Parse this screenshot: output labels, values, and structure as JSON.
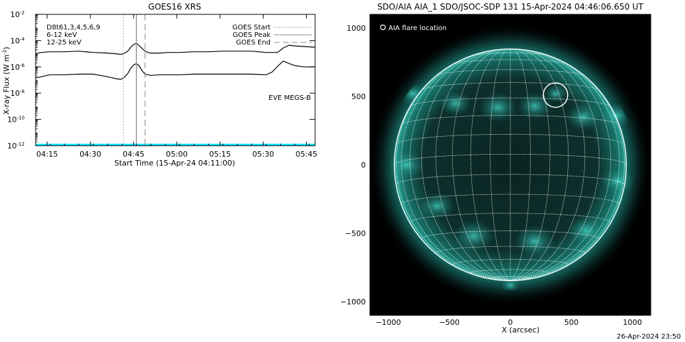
{
  "footer_timestamp": "26-Apr-2024 23:50",
  "chart_data": [
    {
      "type": "line",
      "title": "GOES16 XRS",
      "xlabel": "Start Time (15-Apr-24 04:11:00)",
      "ylabel_main": "X-ray Flux (W m",
      "ylabel_sup": "-2",
      "ylabel_close": ")",
      "x_unit": "minutes after 04:11:00",
      "xlim": [
        0,
        97
      ],
      "ylim_log10": [
        -12,
        -2
      ],
      "y_scale": "log",
      "x_ticks": [
        {
          "x": 4,
          "label": "04:15"
        },
        {
          "x": 19,
          "label": "04:30"
        },
        {
          "x": 34,
          "label": "04:45"
        },
        {
          "x": 49,
          "label": "05:00"
        },
        {
          "x": 64,
          "label": "05:15"
        },
        {
          "x": 79,
          "label": "05:30"
        },
        {
          "x": 94,
          "label": "05:45"
        }
      ],
      "y_ticks": [
        {
          "exp": -12,
          "base": "10",
          "sup": "-12"
        },
        {
          "exp": -10,
          "base": "10",
          "sup": "-10"
        },
        {
          "exp": -8,
          "base": "10",
          "sup": "-8"
        },
        {
          "exp": -6,
          "base": "10",
          "sup": "-6"
        },
        {
          "exp": -4,
          "base": "10",
          "sup": "-4"
        },
        {
          "exp": -2,
          "base": "10",
          "sup": "-2"
        }
      ],
      "top_left_labels": [
        {
          "text": "D8t61,3,4,5,6,9",
          "color": "#000000"
        },
        {
          "text": "6-12 keV",
          "color": "#ff00ff"
        },
        {
          "text": "12-25 keV",
          "color": "#00cc00"
        }
      ],
      "legend": [
        {
          "label": "GOES Start",
          "style": "dotted"
        },
        {
          "label": "GOES Peak",
          "style": "solid"
        },
        {
          "label": "GOES End",
          "style": "dashed"
        }
      ],
      "event_lines": {
        "start": 30.5,
        "peak": 35,
        "end": 38
      },
      "annotation": {
        "text": "EVE MEGS-B",
        "color": "#00e5ff"
      },
      "baseline": {
        "log10": -12,
        "color": "#00e5ff"
      },
      "series": [
        {
          "color": "#000000",
          "x": [
            0,
            2,
            5,
            10,
            15,
            20,
            25,
            28,
            29.5,
            30.5,
            32,
            33,
            34,
            35,
            36,
            37,
            38,
            39,
            40,
            43,
            46,
            50,
            55,
            60,
            65,
            70,
            75,
            80,
            82,
            84,
            86,
            88,
            90,
            93,
            97
          ],
          "log10": [
            -5.0,
            -4.9,
            -4.85,
            -4.85,
            -4.8,
            -4.9,
            -4.95,
            -5.0,
            -5.05,
            -5.0,
            -4.8,
            -4.5,
            -4.3,
            -4.2,
            -4.4,
            -4.6,
            -4.8,
            -4.9,
            -4.95,
            -4.95,
            -4.9,
            -4.9,
            -4.85,
            -4.85,
            -4.8,
            -4.8,
            -4.8,
            -4.9,
            -4.9,
            -4.9,
            -4.55,
            -4.35,
            -4.4,
            -4.45,
            -4.5
          ]
        },
        {
          "color": "#000000",
          "x": [
            0,
            2,
            5,
            10,
            15,
            20,
            25,
            28,
            29.5,
            30.5,
            32,
            33,
            34,
            35,
            36,
            37,
            38,
            39,
            40,
            43,
            46,
            50,
            55,
            60,
            65,
            70,
            75,
            80,
            82,
            84,
            86,
            88,
            90,
            93,
            97
          ],
          "log10": [
            -6.85,
            -6.75,
            -6.6,
            -6.6,
            -6.55,
            -6.55,
            -6.75,
            -6.9,
            -6.95,
            -6.85,
            -6.5,
            -6.1,
            -5.85,
            -5.75,
            -5.95,
            -6.3,
            -6.55,
            -6.6,
            -6.65,
            -6.6,
            -6.6,
            -6.6,
            -6.55,
            -6.55,
            -6.55,
            -6.55,
            -6.55,
            -6.6,
            -6.4,
            -5.95,
            -5.55,
            -5.75,
            -5.9,
            -6.0,
            -6.0
          ]
        }
      ]
    },
    {
      "type": "image",
      "title": "SDO/AIA AIA_1 SDO/JSOC-SDP 131 15-Apr-2024 04:46:06.650 UT",
      "xlabel": "X (arcsec)",
      "xlim": [
        -1150,
        1150
      ],
      "ylim": [
        -1100,
        1100
      ],
      "x_ticks": [
        -1000,
        -500,
        0,
        500,
        1000
      ],
      "y_ticks": [
        -1000,
        -500,
        0,
        500,
        1000
      ],
      "x_tick_labels": [
        "−1000",
        "−500",
        "0",
        "500",
        "1000"
      ],
      "y_tick_labels": [
        "−1000",
        "−500",
        "0",
        "500",
        "1000"
      ],
      "solar_radius_arcsec": 950,
      "disk_color": "#0c2a28",
      "glow_color": "#1e8f86",
      "bright_color": "#47e0d0",
      "flare_marker": {
        "label": "AIA flare location",
        "x": 370,
        "y": 510
      },
      "bright_regions": [
        {
          "x": 370,
          "y": 520,
          "r": 70
        },
        {
          "x": -800,
          "y": 520,
          "r": 90
        },
        {
          "x": -850,
          "y": 0,
          "r": 110
        },
        {
          "x": -600,
          "y": -300,
          "r": 110
        },
        {
          "x": -450,
          "y": 450,
          "r": 100
        },
        {
          "x": -100,
          "y": 420,
          "r": 120
        },
        {
          "x": 200,
          "y": 430,
          "r": 110
        },
        {
          "x": 600,
          "y": 350,
          "r": 110
        },
        {
          "x": 870,
          "y": 360,
          "r": 100
        },
        {
          "x": -300,
          "y": -520,
          "r": 130
        },
        {
          "x": 200,
          "y": -560,
          "r": 130
        },
        {
          "x": 620,
          "y": -480,
          "r": 120
        },
        {
          "x": 880,
          "y": -120,
          "r": 100
        },
        {
          "x": -450,
          "y": 880,
          "r": 60
        },
        {
          "x": 0,
          "y": -880,
          "r": 60
        }
      ]
    }
  ]
}
